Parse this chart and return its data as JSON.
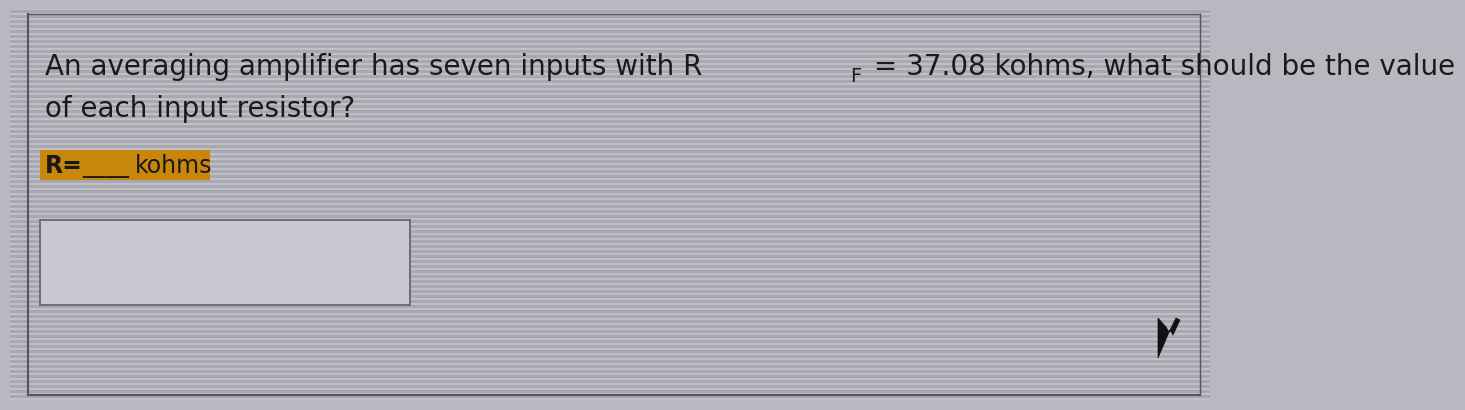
{
  "background_color": "#b8b8c0",
  "stripe_color_light": "#c0c0c8",
  "stripe_color_dark": "#a8a8b0",
  "left_border_color": "#555560",
  "outer_border_color": "#555560",
  "inner_box_color": "#c8c8d0",
  "inner_box_border": "#606068",
  "text_color": "#1a1a1a",
  "highlight_color": "#c8860a",
  "font_size_main": 20,
  "font_size_answer": 17,
  "line1_text": "An averaging amplifier has seven inputs with R",
  "line1_sub": "F",
  "line1_end": " = 37.08 kohms, what should be the value",
  "line2_text": "of each input resistor?",
  "answer_prefix": "R=",
  "answer_blank": "____",
  "answer_unit": "kohms",
  "cursor_color": "#111111"
}
